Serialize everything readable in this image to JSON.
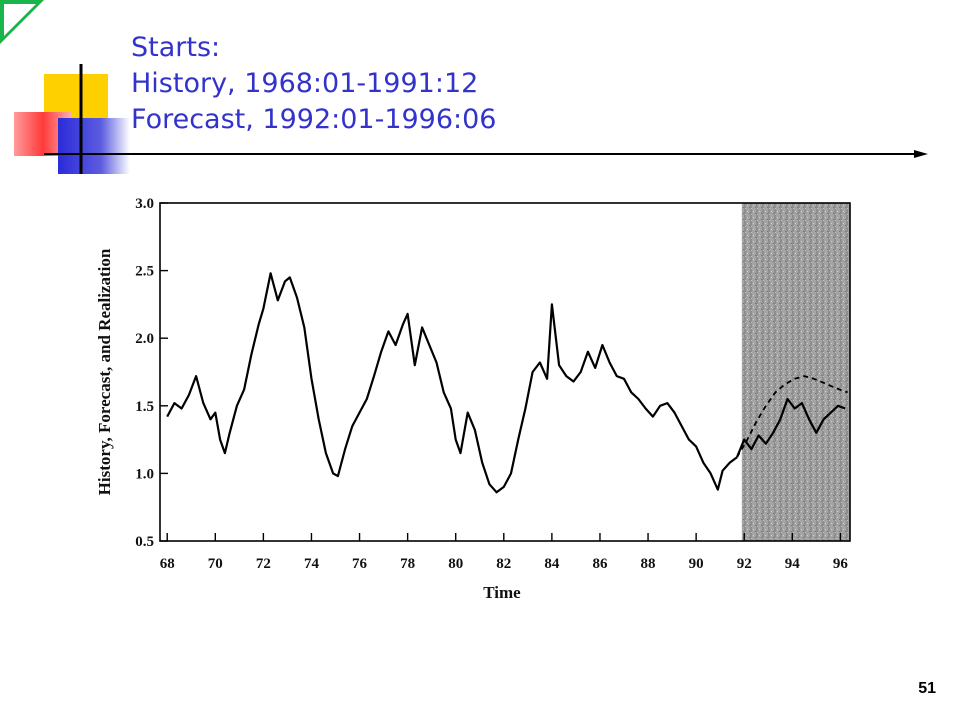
{
  "slide": {
    "title_lines": [
      "Starts:",
      "History, 1968:01-1991:12",
      "Forecast, 1992:01-1996:06"
    ],
    "page_number": "51"
  },
  "colors": {
    "title": "#3333cc",
    "deco_yellow": "#ffd000",
    "deco_red": "#ff3b3b",
    "deco_blue": "#2b2bd9",
    "corner_green": "#19b54a",
    "shaded_region": "#9a9a9a"
  },
  "chart_data": {
    "type": "line",
    "title": "",
    "xlabel": "Time",
    "ylabel": "History, Forecast, and Realization",
    "xlim": [
      1967.7,
      1996.4
    ],
    "ylim": [
      0.5,
      3.0
    ],
    "xticks": [
      1968,
      1970,
      1972,
      1974,
      1976,
      1978,
      1980,
      1982,
      1984,
      1986,
      1988,
      1990,
      1992,
      1994,
      1996
    ],
    "xtick_labels": [
      "68",
      "70",
      "72",
      "74",
      "76",
      "78",
      "80",
      "82",
      "84",
      "86",
      "88",
      "90",
      "92",
      "94",
      "96"
    ],
    "yticks": [
      0.5,
      1.0,
      1.5,
      2.0,
      2.5,
      3.0
    ],
    "ytick_labels": [
      "0.5",
      "1.0",
      "1.5",
      "2.0",
      "2.5",
      "3.0"
    ],
    "grid": false,
    "shaded_x_range": [
      1991.9,
      1996.4
    ],
    "series": [
      {
        "style": "solid",
        "x": [
          1968.0,
          1968.3,
          1968.6,
          1968.9,
          1969.2,
          1969.5,
          1969.8,
          1970.0,
          1970.2,
          1970.4,
          1970.6,
          1970.9,
          1971.2,
          1971.5,
          1971.8,
          1972.0,
          1972.3,
          1972.6,
          1972.9,
          1973.1,
          1973.4,
          1973.7,
          1974.0,
          1974.3,
          1974.6,
          1974.9,
          1975.1,
          1975.4,
          1975.7,
          1976.0,
          1976.3,
          1976.6,
          1976.9,
          1977.2,
          1977.5,
          1977.8,
          1978.0,
          1978.3,
          1978.6,
          1978.9,
          1979.2,
          1979.5,
          1979.8,
          1980.0,
          1980.2,
          1980.5,
          1980.8,
          1981.1,
          1981.4,
          1981.7,
          1982.0,
          1982.3,
          1982.6,
          1982.9,
          1983.2,
          1983.5,
          1983.8,
          1984.0,
          1984.3,
          1984.6,
          1984.9,
          1985.2,
          1985.5,
          1985.8,
          1986.1,
          1986.4,
          1986.7,
          1987.0,
          1987.3,
          1987.6,
          1987.9,
          1988.2,
          1988.5,
          1988.8,
          1989.1,
          1989.4,
          1989.7,
          1990.0,
          1990.3,
          1990.6,
          1990.9,
          1991.1,
          1991.4,
          1991.7
        ],
        "y": [
          1.42,
          1.52,
          1.48,
          1.58,
          1.72,
          1.52,
          1.4,
          1.45,
          1.25,
          1.15,
          1.3,
          1.5,
          1.62,
          1.88,
          2.1,
          2.22,
          2.48,
          2.28,
          2.42,
          2.45,
          2.3,
          2.08,
          1.7,
          1.4,
          1.15,
          1.0,
          0.98,
          1.18,
          1.35,
          1.45,
          1.55,
          1.72,
          1.9,
          2.05,
          1.95,
          2.1,
          2.18,
          1.8,
          2.08,
          1.95,
          1.82,
          1.6,
          1.48,
          1.25,
          1.15,
          1.45,
          1.32,
          1.08,
          0.92,
          0.86,
          0.9,
          1.0,
          1.25,
          1.48,
          1.75,
          1.82,
          1.7,
          2.25,
          1.8,
          1.72,
          1.68,
          1.75,
          1.9,
          1.78,
          1.95,
          1.82,
          1.72,
          1.7,
          1.6,
          1.55,
          1.48,
          1.42,
          1.5,
          1.52,
          1.45,
          1.35,
          1.25,
          1.2,
          1.08,
          1.0,
          0.88,
          1.02,
          1.08,
          1.12
        ]
      },
      {
        "style": "solid",
        "x": [
          1991.7,
          1992.0,
          1992.3,
          1992.6,
          1992.9,
          1993.2,
          1993.5,
          1993.8,
          1994.1,
          1994.4,
          1994.7,
          1995.0,
          1995.3,
          1995.6,
          1995.9,
          1996.2
        ],
        "y": [
          1.12,
          1.25,
          1.18,
          1.28,
          1.22,
          1.3,
          1.4,
          1.55,
          1.48,
          1.52,
          1.4,
          1.3,
          1.4,
          1.45,
          1.5,
          1.48
        ]
      },
      {
        "style": "dashed",
        "x": [
          1991.7,
          1992.1,
          1992.5,
          1992.9,
          1993.3,
          1993.7,
          1994.1,
          1994.5,
          1994.9,
          1995.3,
          1995.7,
          1996.1,
          1996.3
        ],
        "y": [
          1.12,
          1.24,
          1.38,
          1.5,
          1.6,
          1.66,
          1.7,
          1.72,
          1.7,
          1.67,
          1.64,
          1.61,
          1.6
        ]
      }
    ]
  }
}
